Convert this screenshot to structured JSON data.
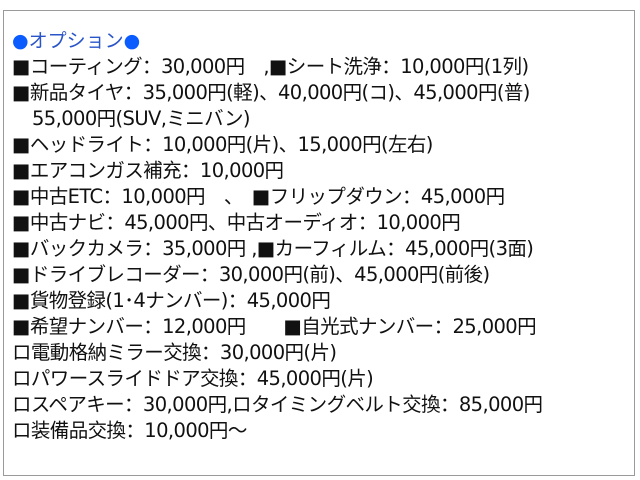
{
  "title": {
    "bullet": "●",
    "text": "オプション"
  },
  "lines": [
    "■コーティング：30,000円　,■シート洗浄：10,000円(1列)",
    "■新品タイヤ：35,000円(軽)、40,000円(コ)、45,000円(普)",
    "55,000円(SUV,ミニバン)",
    "■ヘッドライト：10,000円(片)、15,000円(左右)",
    "■エアコンガス補充：10,000円",
    "■中古ETC：10,000円　、　■フリップダウン：45,000円",
    "■中古ナビ：45,000円、中古オーディオ：10,000円",
    "■バックカメラ：35,000円 ,■カーフィルム：45,000円(3面)",
    "■ドライブレコーダー：30,000円(前)、45,000円(前後)",
    "■貨物登録(1･4ナンバー)：45,000円",
    "■希望ナンバー：12,000円　　■自光式ナンバー：25,000円",
    "ロ電動格納ミラー交換：30,000円(片)",
    "ロパワースライドドア交換：45,000円(片)",
    "ロスペアキー：30,000円,ロタイミングベルト交換：85,000円",
    "ロ装備品交換：10,000円～"
  ]
}
